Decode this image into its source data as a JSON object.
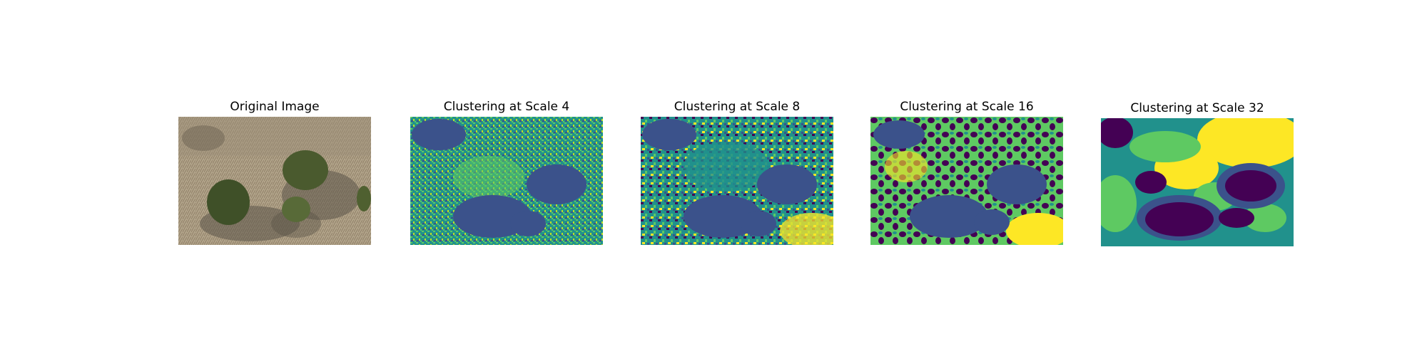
{
  "figure": {
    "panels": [
      {
        "title": "Original Image",
        "kind": "photo"
      },
      {
        "title": "Clustering at Scale 4",
        "kind": "cluster"
      },
      {
        "title": "Clustering at Scale 8",
        "kind": "cluster"
      },
      {
        "title": "Clustering at Scale 16",
        "kind": "cluster"
      },
      {
        "title": "Clustering at Scale 32",
        "kind": "cluster"
      }
    ],
    "cluster_colors": [
      "#440154",
      "#3b528b",
      "#21918c",
      "#5ec962",
      "#fde725"
    ]
  }
}
